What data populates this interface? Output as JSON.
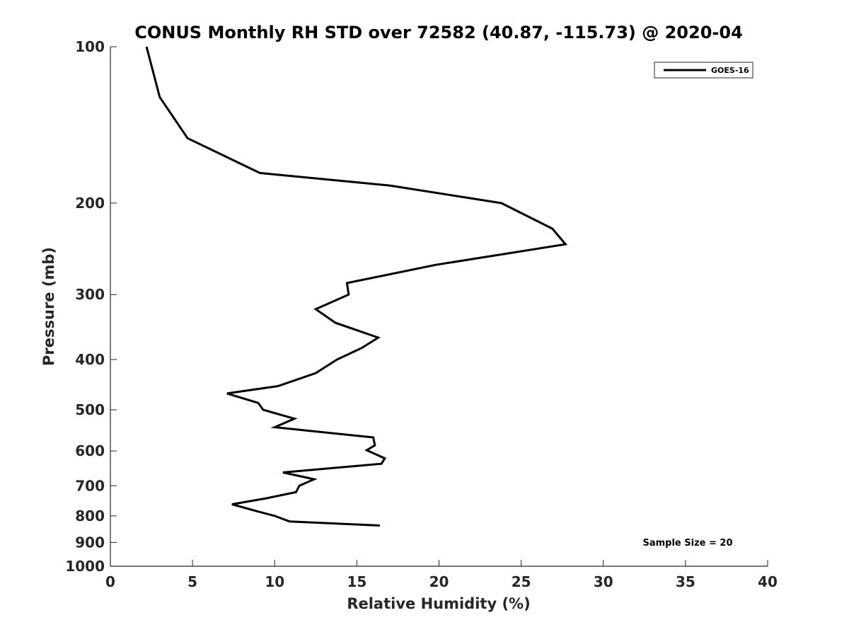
{
  "chart_data": {
    "type": "line",
    "title": "CONUS Monthly RH STD over 72582 (40.87, -115.73) @ 2020-04",
    "xlabel": "Relative Humidity (%)",
    "ylabel": "Pressure (mb)",
    "xlim": [
      0,
      40
    ],
    "ylim": [
      100,
      1000
    ],
    "y_scale": "log",
    "y_reversed": true,
    "grid": false,
    "legend_position": "top-right",
    "x_ticks": [
      0,
      5,
      10,
      15,
      20,
      25,
      30,
      35,
      40
    ],
    "y_ticks": [
      100,
      200,
      300,
      400,
      500,
      600,
      700,
      800,
      900,
      1000
    ],
    "annotation": "Sample Size = 20",
    "series": [
      {
        "name": "GOES-16",
        "color": "#000000",
        "points": [
          [
            2.2,
            100
          ],
          [
            3.0,
            125
          ],
          [
            4.7,
            150
          ],
          [
            9.1,
            175
          ],
          [
            17.0,
            185
          ],
          [
            23.8,
            200
          ],
          [
            26.9,
            224
          ],
          [
            27.7,
            240
          ],
          [
            19.8,
            263
          ],
          [
            14.4,
            285
          ],
          [
            14.5,
            300
          ],
          [
            12.5,
            320
          ],
          [
            13.7,
            340
          ],
          [
            16.3,
            363
          ],
          [
            15.3,
            380
          ],
          [
            13.8,
            400
          ],
          [
            12.5,
            425
          ],
          [
            10.2,
            450
          ],
          [
            7.1,
            465
          ],
          [
            9.0,
            485
          ],
          [
            9.3,
            500
          ],
          [
            11.2,
            520
          ],
          [
            10.0,
            540
          ],
          [
            16.0,
            565
          ],
          [
            16.1,
            585
          ],
          [
            15.6,
            598
          ],
          [
            16.7,
            620
          ],
          [
            16.5,
            635
          ],
          [
            10.5,
            660
          ],
          [
            12.4,
            680
          ],
          [
            11.5,
            700
          ],
          [
            11.3,
            720
          ],
          [
            9.5,
            740
          ],
          [
            7.4,
            760
          ],
          [
            9.0,
            785
          ],
          [
            10.0,
            800
          ],
          [
            10.9,
            820
          ],
          [
            16.4,
            835
          ]
        ]
      }
    ]
  }
}
